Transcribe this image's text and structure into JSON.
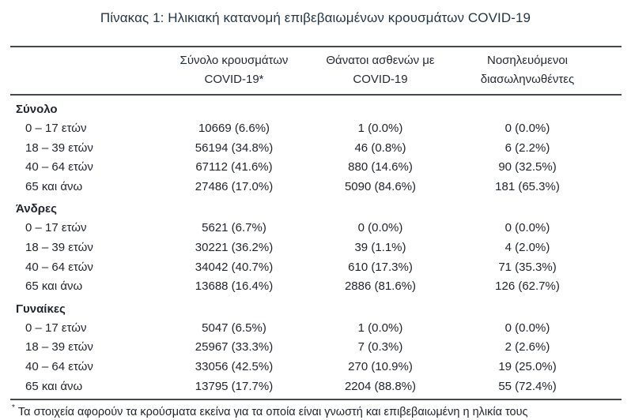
{
  "page": {
    "title": "Πίνακας 1: Ηλικιακή κατανομή επιβεβαιωμένων κρουσμάτων COVID-19"
  },
  "colors": {
    "title_text": "#243645",
    "body_text": "#21262c",
    "rule": "#43484e",
    "background": "#ffffff"
  },
  "table": {
    "columns": {
      "cases_line1": "Σύνολο κρουσμάτων",
      "cases_line2": "COVID-19*",
      "deaths_line1": "Θάνατοι ασθενών με",
      "deaths_line2": "COVID-19",
      "intubated_line1": "Νοσηλευόμενοι",
      "intubated_line2": "διασωληνωθέντες"
    },
    "sections": [
      {
        "label": "Σύνολο",
        "rows": [
          {
            "label": "0 – 17 ετών",
            "cases": "10669 (6.6%)",
            "deaths": "1 (0.0%)",
            "intubated": "0 (0.0%)"
          },
          {
            "label": "18 – 39 ετών",
            "cases": "56194 (34.8%)",
            "deaths": "46 (0.8%)",
            "intubated": "6 (2.2%)"
          },
          {
            "label": "40 – 64 ετών",
            "cases": "67112 (41.6%)",
            "deaths": "880 (14.6%)",
            "intubated": "90 (32.5%)"
          },
          {
            "label": "65 και άνω",
            "cases": "27486 (17.0%)",
            "deaths": "5090 (84.6%)",
            "intubated": "181 (65.3%)"
          }
        ]
      },
      {
        "label": "Άνδρες",
        "rows": [
          {
            "label": "0 – 17 ετών",
            "cases": "5621 (6.7%)",
            "deaths": "0 (0.0%)",
            "intubated": "0 (0.0%)"
          },
          {
            "label": "18 – 39 ετών",
            "cases": "30221 (36.2%)",
            "deaths": "39 (1.1%)",
            "intubated": "4 (2.0%)"
          },
          {
            "label": "40 – 64 ετών",
            "cases": "34042 (40.7%)",
            "deaths": "610 (17.3%)",
            "intubated": "71 (35.3%)"
          },
          {
            "label": "65 και άνω",
            "cases": "13688 (16.4%)",
            "deaths": "2886 (81.6%)",
            "intubated": "126 (62.7%)"
          }
        ]
      },
      {
        "label": "Γυναίκες",
        "rows": [
          {
            "label": "0 – 17 ετών",
            "cases": "5047 (6.5%)",
            "deaths": "1 (0.0%)",
            "intubated": "0 (0.0%)"
          },
          {
            "label": "18 – 39 ετών",
            "cases": "25967 (33.3%)",
            "deaths": "7 (0.3%)",
            "intubated": "2 (2.6%)"
          },
          {
            "label": "40 – 64 ετών",
            "cases": "33056 (42.5%)",
            "deaths": "270 (10.9%)",
            "intubated": "19 (25.0%)"
          },
          {
            "label": "65 και άνω",
            "cases": "13795 (17.7%)",
            "deaths": "2204 (88.8%)",
            "intubated": "55 (72.4%)"
          }
        ]
      }
    ],
    "footnote_marker": "*",
    "footnote": "Τα στοιχεία αφορούν τα κρούσματα εκείνα για τα οποία είναι γνωστή και επιβεβαιωμένη η ηλικία τους"
  }
}
